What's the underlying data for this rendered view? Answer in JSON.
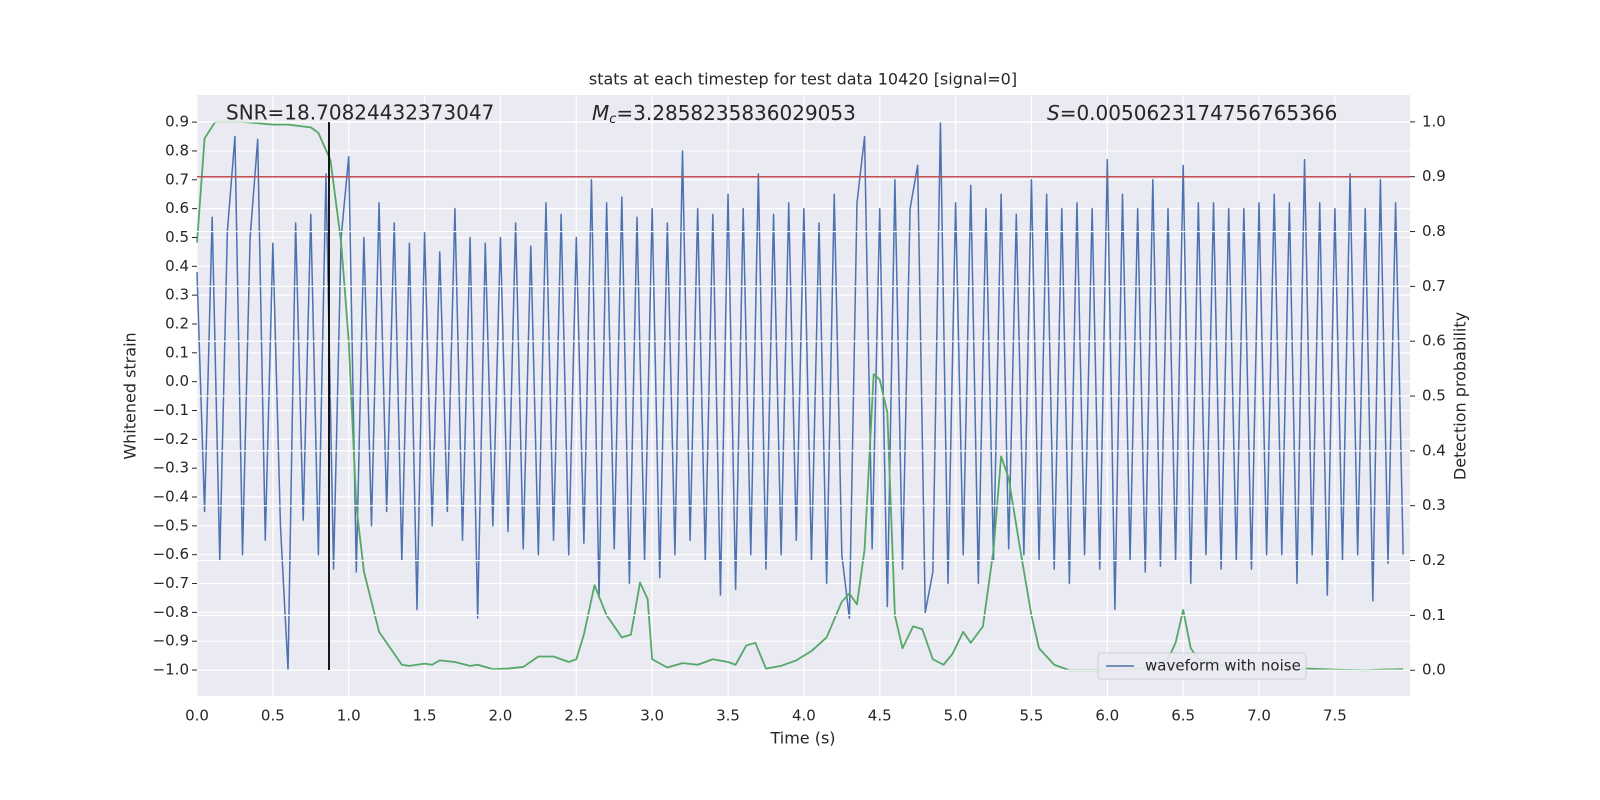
{
  "chart_data": {
    "type": "line",
    "title": "stats at each timestep for test data 10420 [signal=0]",
    "x_label": "Time (s)",
    "y_label": "Whitened strain",
    "y2_label": "Detection probability",
    "annotations": [
      {
        "text": "SNR=18.70824432373047"
      },
      {
        "symbol": "M",
        "subscript": "c",
        "text": "=3.2858235836029053"
      },
      {
        "symbol": "S",
        "text": "=0.0050623174756765366"
      }
    ],
    "xlim": [
      0,
      7.995
    ],
    "ylim": [
      -1.09,
      0.994
    ],
    "y2lim": [
      -0.047,
      1.049
    ],
    "xticks": [
      {
        "value": 0,
        "label": "0.0"
      },
      0.5,
      {
        "value": 1,
        "label": "1.0"
      },
      1.5,
      {
        "value": 2,
        "label": "2.0"
      },
      2.5,
      {
        "value": 3,
        "label": "3.0"
      },
      3.5,
      {
        "value": 4,
        "label": "4.0"
      },
      4.5,
      {
        "value": 5,
        "label": "5.0"
      },
      5.5,
      {
        "value": 6,
        "label": "6.0"
      },
      6.5,
      {
        "value": 7,
        "label": "7.0"
      },
      7.5
    ],
    "yticks": [
      {
        "value": -1.0,
        "label": "−1.0"
      },
      {
        "value": -0.9,
        "label": "−0.9"
      },
      {
        "value": -0.8,
        "label": "−0.8"
      },
      {
        "value": -0.7,
        "label": "−0.7"
      },
      {
        "value": -0.6,
        "label": "−0.6"
      },
      {
        "value": -0.5,
        "label": "−0.5"
      },
      {
        "value": -0.4,
        "label": "−0.4"
      },
      {
        "value": -0.3,
        "label": "−0.3"
      },
      {
        "value": -0.2,
        "label": "−0.2"
      },
      {
        "value": -0.1,
        "label": "−0.1"
      },
      {
        "value": 0,
        "label": "0.0"
      },
      0.1,
      0.2,
      0.3,
      0.4,
      0.5,
      0.6,
      0.7,
      0.8,
      0.9
    ],
    "y2ticks": [
      {
        "value": 0,
        "label": "0.0"
      },
      0.1,
      0.2,
      0.3,
      0.4,
      0.5,
      0.6,
      0.7,
      0.8,
      0.9,
      {
        "value": 1,
        "label": "1.0"
      }
    ],
    "grid": true,
    "legend": "lower right",
    "series": [
      {
        "name": "waveform with noise",
        "color": "#4c72b0",
        "x": [
          0,
          0.05,
          0.1,
          0.15,
          0.2,
          0.25,
          0.3,
          0.35,
          0.4,
          0.45,
          0.5,
          0.55,
          0.6,
          0.65,
          0.7,
          0.75,
          0.8,
          0.85,
          0.9,
          0.95,
          1,
          1.05,
          1.1,
          1.15,
          1.2,
          1.25,
          1.3,
          1.35,
          1.4,
          1.45,
          1.5,
          1.55,
          1.6,
          1.65,
          1.7,
          1.75,
          1.8,
          1.85,
          1.9,
          1.95,
          2,
          2.05,
          2.1,
          2.15,
          2.2,
          2.25,
          2.3,
          2.35,
          2.4,
          2.45,
          2.5,
          2.55,
          2.6,
          2.65,
          2.7,
          2.75,
          2.8,
          2.85,
          2.9,
          2.95,
          3,
          3.05,
          3.1,
          3.15,
          3.2,
          3.25,
          3.3,
          3.35,
          3.4,
          3.45,
          3.5,
          3.55,
          3.6,
          3.65,
          3.7,
          3.75,
          3.8,
          3.85,
          3.9,
          3.95,
          4,
          4.05,
          4.1,
          4.15,
          4.2,
          4.25,
          4.3,
          4.35,
          4.4,
          4.45,
          4.5,
          4.55,
          4.6,
          4.65,
          4.7,
          4.75,
          4.8,
          4.85,
          4.9,
          4.95,
          5,
          5.05,
          5.1,
          5.15,
          5.2,
          5.25,
          5.3,
          5.35,
          5.4,
          5.45,
          5.5,
          5.55,
          5.6,
          5.65,
          5.7,
          5.75,
          5.8,
          5.85,
          5.9,
          5.95,
          6,
          6.05,
          6.1,
          6.15,
          6.2,
          6.25,
          6.3,
          6.35,
          6.4,
          6.45,
          6.5,
          6.55,
          6.6,
          6.65,
          6.7,
          6.75,
          6.8,
          6.85,
          6.9,
          6.95,
          7,
          7.05,
          7.1,
          7.15,
          7.2,
          7.25,
          7.3,
          7.35,
          7.4,
          7.45,
          7.5,
          7.55,
          7.6,
          7.65,
          7.7,
          7.75,
          7.8,
          7.85,
          7.9,
          7.95
        ],
        "values": [
          0.38,
          -0.45,
          0.57,
          -0.62,
          0.52,
          0.85,
          -0.6,
          0.5,
          0.84,
          -0.55,
          0.48,
          -0.5,
          -1.0,
          0.55,
          -0.48,
          0.58,
          -0.6,
          0.72,
          -0.65,
          0.5,
          0.78,
          -0.66,
          0.5,
          -0.5,
          0.62,
          -0.45,
          0.55,
          -0.62,
          0.48,
          -0.79,
          0.52,
          -0.5,
          0.45,
          -0.45,
          0.6,
          -0.55,
          0.5,
          -0.82,
          0.48,
          -0.5,
          0.5,
          -0.52,
          0.55,
          -0.58,
          0.47,
          -0.6,
          0.62,
          -0.55,
          0.58,
          -0.6,
          0.5,
          -0.56,
          0.7,
          -0.75,
          0.62,
          -0.58,
          0.64,
          -0.7,
          0.57,
          -0.62,
          0.6,
          -0.68,
          0.55,
          -0.6,
          0.8,
          -0.55,
          0.6,
          -0.62,
          0.58,
          -0.74,
          0.65,
          -0.72,
          0.6,
          -0.6,
          0.72,
          -0.65,
          0.58,
          -0.6,
          0.62,
          -0.55,
          0.6,
          -0.62,
          0.55,
          -0.7,
          0.65,
          -0.6,
          -0.82,
          0.62,
          0.85,
          -0.58,
          0.6,
          -0.78,
          0.7,
          -0.65,
          0.6,
          0.75,
          -0.8,
          -0.66,
          0.9,
          -0.7,
          0.62,
          -0.6,
          0.68,
          -0.7,
          0.6,
          -0.62,
          0.65,
          -0.58,
          0.58,
          -0.6,
          0.7,
          -0.62,
          0.65,
          -0.65,
          0.6,
          -0.7,
          0.62,
          -0.6,
          0.6,
          -0.65,
          0.77,
          -0.79,
          0.65,
          -0.62,
          0.6,
          -0.66,
          0.7,
          -0.64,
          0.6,
          -0.62,
          0.75,
          -0.7,
          0.62,
          -0.6,
          0.62,
          -0.65,
          0.6,
          -0.62,
          0.6,
          -0.65,
          0.62,
          -0.6,
          0.65,
          -0.6,
          0.62,
          -0.7,
          0.77,
          -0.6,
          0.62,
          -0.74,
          0.6,
          -0.62,
          0.72,
          -0.6,
          0.6,
          -0.76,
          0.7,
          -0.63,
          0.62,
          -0.6
        ]
      },
      {
        "color": "#55a868",
        "axis": "y2",
        "x": [
          0,
          0.05,
          0.12,
          0.3,
          0.5,
          0.6,
          0.75,
          0.8,
          0.88,
          0.95,
          1,
          1.05,
          1.1,
          1.2,
          1.3,
          1.35,
          1.4,
          1.5,
          1.55,
          1.6,
          1.7,
          1.8,
          1.85,
          1.95,
          2.05,
          2.15,
          2.25,
          2.35,
          2.45,
          2.5,
          2.55,
          2.62,
          2.7,
          2.8,
          2.86,
          2.92,
          2.97,
          3,
          3.1,
          3.2,
          3.3,
          3.4,
          3.5,
          3.55,
          3.62,
          3.68,
          3.75,
          3.85,
          3.95,
          4.05,
          4.15,
          4.25,
          4.3,
          4.35,
          4.4,
          4.46,
          4.5,
          4.55,
          4.6,
          4.65,
          4.72,
          4.78,
          4.85,
          4.92,
          4.98,
          5.05,
          5.1,
          5.18,
          5.25,
          5.3,
          5.35,
          5.42,
          5.5,
          5.55,
          5.65,
          5.75,
          5.9,
          6.05,
          6.2,
          6.3,
          6.4,
          6.45,
          6.5,
          6.55,
          6.6,
          6.7,
          6.8,
          6.9,
          7.1,
          7.3,
          7.5,
          7.7,
          7.8,
          7.95
        ],
        "values": [
          0.78,
          0.97,
          1.0,
          1.0,
          0.995,
          0.995,
          0.99,
          0.98,
          0.93,
          0.78,
          0.6,
          0.3,
          0.18,
          0.07,
          0.03,
          0.01,
          0.008,
          0.012,
          0.01,
          0.018,
          0.015,
          0.008,
          0.01,
          0.002,
          0.003,
          0.006,
          0.025,
          0.025,
          0.015,
          0.02,
          0.065,
          0.155,
          0.1,
          0.06,
          0.065,
          0.16,
          0.13,
          0.02,
          0.005,
          0.013,
          0.01,
          0.02,
          0.015,
          0.01,
          0.045,
          0.05,
          0.003,
          0.008,
          0.018,
          0.035,
          0.06,
          0.125,
          0.14,
          0.12,
          0.22,
          0.54,
          0.53,
          0.47,
          0.1,
          0.04,
          0.08,
          0.075,
          0.02,
          0.01,
          0.03,
          0.07,
          0.05,
          0.08,
          0.22,
          0.39,
          0.35,
          0.23,
          0.1,
          0.04,
          0.01,
          0,
          0,
          0,
          0.002,
          0.008,
          0.02,
          0.05,
          0.11,
          0.04,
          0.02,
          0.015,
          0.005,
          0,
          0,
          0.003,
          0.001,
          0,
          0.001,
          0.002
        ]
      }
    ],
    "hlines": [
      {
        "value": 0.9,
        "axis": "y2",
        "color": "#c44e52"
      }
    ],
    "vlines": [
      {
        "x": 0.87,
        "ymin": -1.0,
        "ymax": 0.9,
        "color": "#000000"
      }
    ]
  }
}
